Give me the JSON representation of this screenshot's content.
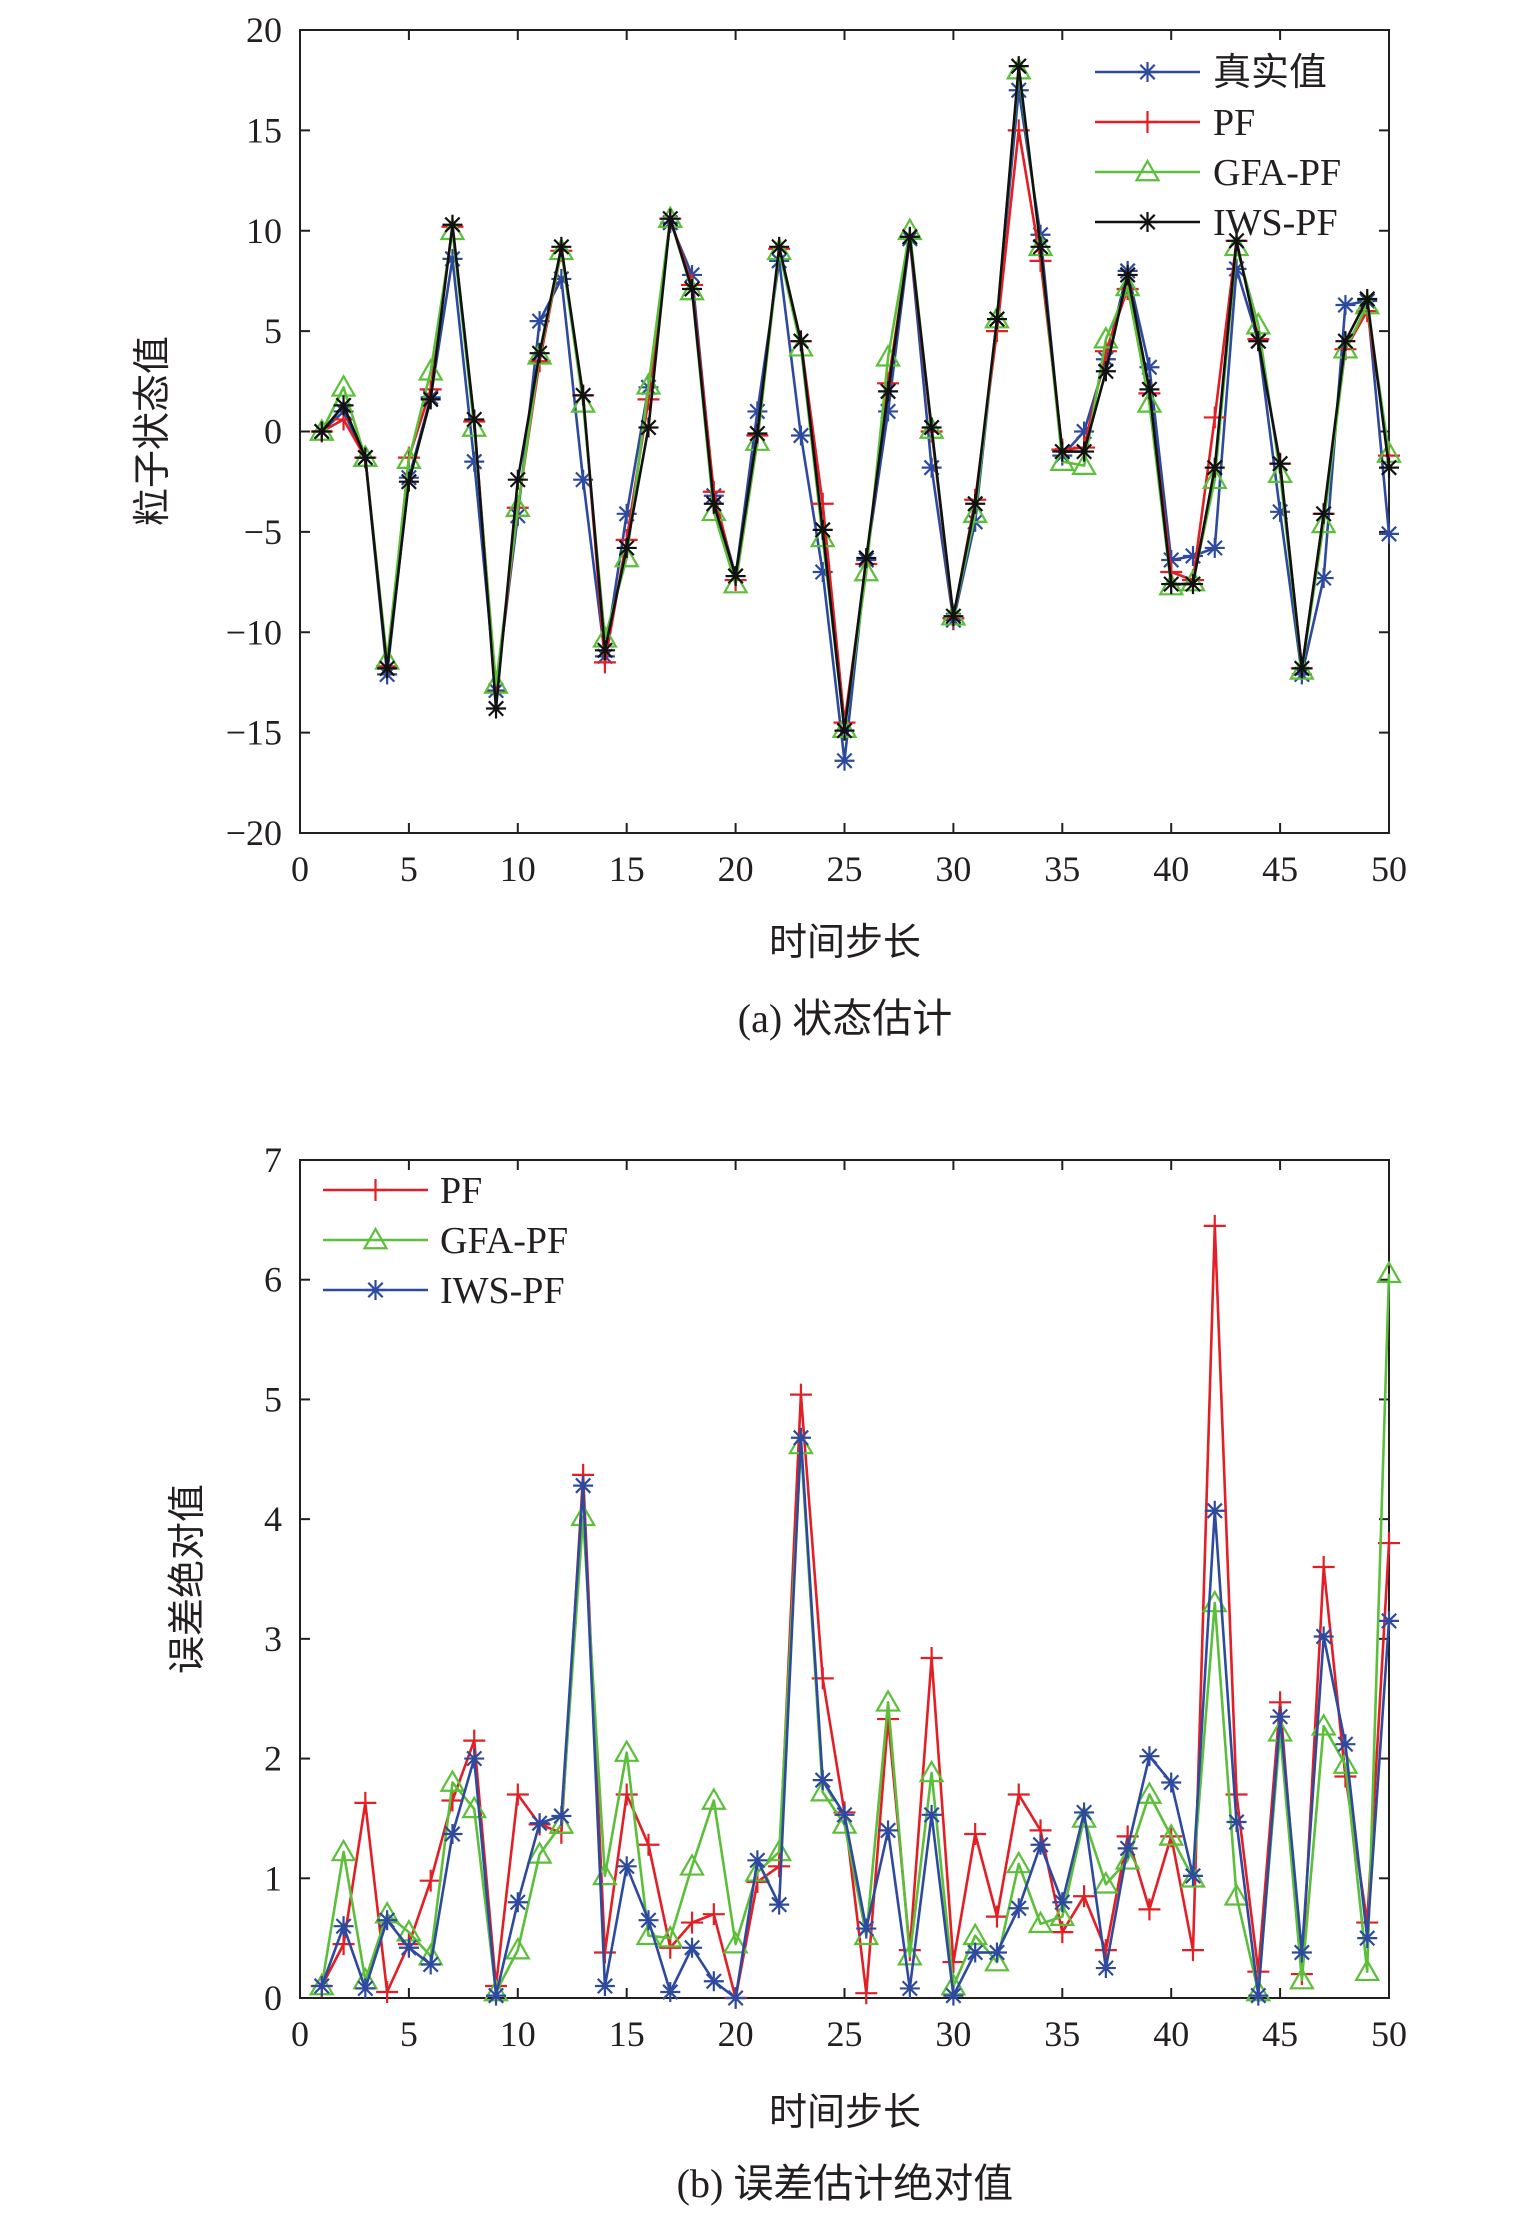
{
  "colors": {
    "truth": "#2e4a9e",
    "pf": "#e31e24",
    "gfa": "#5cbf3a",
    "iws": "#111111",
    "iws_b": "#2e4a9e",
    "axis": "#231f20"
  },
  "chart_data": [
    {
      "id": "a",
      "type": "line",
      "caption": "(a) 状态估计",
      "xlabel": "时间步长",
      "ylabel": "粒子状态值",
      "xlim": [
        0,
        50
      ],
      "ylim": [
        -20,
        20
      ],
      "xticks": [
        0,
        5,
        10,
        15,
        20,
        25,
        30,
        35,
        40,
        45,
        50
      ],
      "yticks": [
        -20,
        -15,
        -10,
        -5,
        0,
        5,
        10,
        15,
        20
      ],
      "grid": false,
      "legend_position": "top-right",
      "x": [
        1,
        2,
        3,
        4,
        5,
        6,
        7,
        8,
        9,
        10,
        11,
        12,
        13,
        14,
        15,
        16,
        17,
        18,
        19,
        20,
        21,
        22,
        23,
        24,
        25,
        26,
        27,
        28,
        29,
        30,
        31,
        32,
        33,
        34,
        35,
        36,
        37,
        38,
        39,
        40,
        41,
        42,
        43,
        44,
        45,
        46,
        47,
        48,
        49,
        50
      ],
      "series": [
        {
          "name": "真实值",
          "color_key": "truth",
          "marker": "asterisk",
          "values": [
            0,
            1,
            -1.3,
            -12.1,
            -2.3,
            1.7,
            8.6,
            -1.5,
            -12.9,
            -4.2,
            5.5,
            7.6,
            -2.4,
            -11.2,
            -4.1,
            2.2,
            10.4,
            7.8,
            -3.2,
            -7.2,
            1,
            8.5,
            -0.2,
            -7,
            -16.4,
            -6.4,
            1,
            9.6,
            -1.8,
            -9.4,
            -4.5,
            5.6,
            17,
            9.8,
            -1.2,
            0,
            3.6,
            8,
            3.2,
            -6.4,
            -6.2,
            -5.8,
            8.1,
            4.5,
            -4,
            -12.1,
            -7.3,
            6.3,
            6.5,
            -5.1
          ]
        },
        {
          "name": "PF",
          "color_key": "pf",
          "marker": "plus",
          "values": [
            0,
            0.6,
            -1.3,
            -11.7,
            -1.3,
            2.1,
            10.2,
            0.5,
            -13,
            -3.8,
            3.5,
            9,
            1.8,
            -11.5,
            -5.4,
            1.6,
            10.6,
            7.3,
            -3,
            -7.4,
            -0.2,
            9.1,
            4.5,
            -3.6,
            -14.5,
            -6.6,
            2.4,
            9.6,
            0,
            -9.3,
            -3.4,
            5,
            15,
            8.5,
            -0.9,
            -0.8,
            4,
            7.1,
            1.9,
            -7,
            -7.4,
            0.7,
            9.5,
            4.6,
            -1.6,
            -11.8,
            -4.1,
            4.1,
            6,
            -1.2
          ]
        },
        {
          "name": "GFA-PF",
          "color_key": "gfa",
          "marker": "triangle",
          "values": [
            0,
            2.2,
            -1.3,
            -11.4,
            -1.4,
            3,
            10,
            0.2,
            -12.6,
            -3.8,
            3.8,
            9,
            1.4,
            -10.3,
            -6.3,
            2.3,
            10.6,
            7,
            -4,
            -7.6,
            -0.5,
            9,
            4.2,
            -5.3,
            -14.8,
            -7,
            3.7,
            10,
            0.1,
            -9.2,
            -4.1,
            5.6,
            18,
            9.2,
            -1.5,
            -1.7,
            4.6,
            7.2,
            1.4,
            -7.7,
            -7.5,
            -2.4,
            9.2,
            5.3,
            -2.1,
            -11.9,
            -4.6,
            4.1,
            6.3,
            -1.1
          ]
        },
        {
          "name": "IWS-PF",
          "color_key": "iws",
          "marker": "asterisk",
          "values": [
            0,
            1.3,
            -1.3,
            -11.8,
            -2.5,
            1.6,
            10.3,
            0.6,
            -13.8,
            -2.4,
            3.9,
            9.2,
            1.8,
            -10.9,
            -5.8,
            0.2,
            10.6,
            7.1,
            -3.6,
            -7.2,
            -0.1,
            9.2,
            4.5,
            -4.9,
            -14.9,
            -6.3,
            2,
            9.7,
            0.2,
            -9.2,
            -3.6,
            5.6,
            18.2,
            9.2,
            -1,
            -1,
            3,
            7.8,
            2.1,
            -7.6,
            -7.6,
            -1.8,
            9.5,
            4.5,
            -1.6,
            -11.8,
            -4.1,
            4.5,
            6.6,
            -1.8
          ]
        }
      ]
    },
    {
      "id": "b",
      "type": "line",
      "caption": "(b) 误差估计绝对值",
      "xlabel": "时间步长",
      "ylabel": "误差绝对值",
      "xlim": [
        0,
        50
      ],
      "ylim": [
        0,
        7
      ],
      "xticks": [
        0,
        5,
        10,
        15,
        20,
        25,
        30,
        35,
        40,
        45,
        50
      ],
      "yticks": [
        0,
        1,
        2,
        3,
        4,
        5,
        6,
        7
      ],
      "grid": false,
      "legend_position": "top-left",
      "x": [
        1,
        2,
        3,
        4,
        5,
        6,
        7,
        8,
        9,
        10,
        11,
        12,
        13,
        14,
        15,
        16,
        17,
        18,
        19,
        20,
        21,
        22,
        23,
        24,
        25,
        26,
        27,
        28,
        29,
        30,
        31,
        32,
        33,
        34,
        35,
        36,
        37,
        38,
        39,
        40,
        41,
        42,
        43,
        44,
        45,
        46,
        47,
        48,
        49,
        50
      ],
      "series": [
        {
          "name": "PF",
          "color_key": "pf",
          "marker": "plus",
          "values": [
            0.1,
            0.45,
            1.63,
            0.05,
            0.45,
            0.98,
            1.65,
            2.15,
            0.1,
            1.7,
            1.45,
            1.38,
            4.37,
            0.38,
            1.7,
            1.28,
            0.42,
            0.63,
            0.7,
            0,
            0.97,
            1.1,
            5.04,
            2.67,
            1.55,
            0.04,
            2.33,
            0.4,
            2.84,
            0.3,
            1.37,
            0.68,
            1.7,
            1.4,
            0.55,
            0.85,
            0.4,
            1.35,
            0.74,
            1.35,
            0.4,
            6.45,
            1.7,
            0.22,
            2.47,
            0.2,
            3.6,
            1.85,
            0.63,
            3.8
          ]
        },
        {
          "name": "GFA-PF",
          "color_key": "gfa",
          "marker": "triangle",
          "values": [
            0.1,
            1.22,
            0.15,
            0.7,
            0.55,
            0.35,
            1.8,
            1.58,
            0.05,
            0.4,
            1.2,
            1.45,
            4.02,
            1.02,
            2.05,
            0.52,
            0.5,
            1.1,
            1.65,
            0.45,
            1.05,
            1.22,
            4.62,
            1.72,
            1.45,
            0.52,
            2.47,
            0.35,
            1.88,
            0.1,
            0.52,
            0.3,
            1.12,
            0.62,
            0.68,
            1.5,
            0.95,
            1.15,
            1.7,
            1.35,
            1.0,
            3.3,
            0.85,
            0.05,
            2.22,
            0.15,
            2.27,
            1.95,
            0.22,
            6.05
          ]
        },
        {
          "name": "IWS-PF",
          "color_key": "iws_b",
          "marker": "asterisk",
          "values": [
            0.1,
            0.6,
            0.08,
            0.65,
            0.42,
            0.28,
            1.37,
            2.0,
            0.02,
            0.8,
            1.46,
            1.52,
            4.28,
            0.1,
            1.1,
            0.65,
            0.05,
            0.42,
            0.14,
            0,
            1.15,
            0.78,
            4.68,
            1.82,
            1.53,
            0.58,
            1.4,
            0.08,
            1.53,
            0.02,
            0.38,
            0.38,
            0.75,
            1.28,
            0.8,
            1.55,
            0.25,
            1.25,
            2.02,
            1.8,
            1.02,
            4.07,
            1.47,
            0.02,
            2.35,
            0.38,
            3.02,
            2.12,
            0.5,
            3.15
          ]
        }
      ]
    }
  ]
}
